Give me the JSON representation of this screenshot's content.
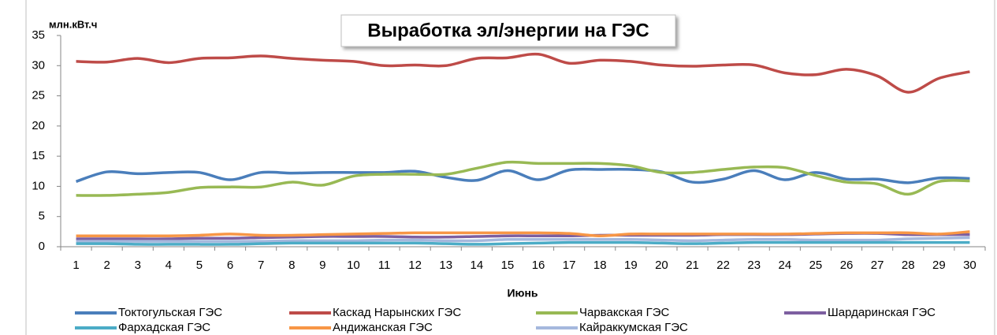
{
  "chart_data": {
    "type": "line",
    "title": "Выработка эл/энергии на ГЭС",
    "y_label": "млн.кВт.ч",
    "x_label": "Июнь",
    "categories": [
      "1",
      "2",
      "3",
      "4",
      "5",
      "6",
      "7",
      "8",
      "9",
      "10",
      "11",
      "12",
      "13",
      "14",
      "15",
      "16",
      "17",
      "18",
      "19",
      "20",
      "21",
      "22",
      "23",
      "24",
      "25",
      "26",
      "27",
      "28",
      "29",
      "30"
    ],
    "ylim": [
      0,
      35
    ],
    "yticks": [
      0,
      5,
      10,
      15,
      20,
      25,
      30,
      35
    ],
    "grid": false,
    "legend": "bottom",
    "series": [
      {
        "name": "Токтогульская ГЭС",
        "color": "#4a7ebb",
        "values": [
          10.8,
          12.4,
          12.1,
          12.3,
          12.3,
          11.1,
          12.3,
          12.2,
          12.3,
          12.3,
          12.3,
          12.5,
          11.5,
          11.0,
          12.6,
          11.1,
          12.7,
          12.8,
          12.8,
          12.4,
          10.7,
          11.2,
          12.6,
          11.1,
          12.3,
          11.2,
          11.2,
          10.6,
          11.4,
          11.3
        ]
      },
      {
        "name": "Каскад Нарынских ГЭС",
        "color": "#be4b48",
        "values": [
          30.7,
          30.6,
          31.2,
          30.5,
          31.2,
          31.3,
          31.6,
          31.2,
          30.9,
          30.7,
          30.0,
          30.1,
          30.0,
          31.2,
          31.3,
          31.9,
          30.4,
          30.9,
          30.7,
          30.1,
          29.9,
          30.1,
          30.1,
          28.8,
          28.5,
          29.4,
          28.3,
          25.6,
          27.9,
          29.0
        ]
      },
      {
        "name": "Чарвакская ГЭС",
        "color": "#98b954",
        "values": [
          8.5,
          8.5,
          8.7,
          9.0,
          9.8,
          9.9,
          9.9,
          10.7,
          10.2,
          11.7,
          12.0,
          12.0,
          12.0,
          13.0,
          14.0,
          13.8,
          13.8,
          13.8,
          13.4,
          12.3,
          12.3,
          12.8,
          13.2,
          13.1,
          11.8,
          10.7,
          10.4,
          8.7,
          10.8,
          10.9
        ]
      },
      {
        "name": "Шардаринская ГЭС",
        "color": "#7d5fa0",
        "values": [
          1.3,
          1.3,
          1.3,
          1.3,
          1.4,
          1.4,
          1.5,
          1.6,
          1.7,
          1.7,
          1.7,
          1.6,
          1.6,
          1.7,
          1.8,
          1.8,
          1.8,
          1.9,
          1.9,
          1.9,
          1.9,
          2.0,
          2.0,
          2.0,
          2.1,
          2.2,
          2.2,
          2.0,
          2.0,
          2.0
        ]
      },
      {
        "name": "Фархадская ГЭС",
        "color": "#4bacc6",
        "values": [
          0.5,
          0.5,
          0.4,
          0.4,
          0.4,
          0.4,
          0.5,
          0.6,
          0.6,
          0.6,
          0.6,
          0.6,
          0.5,
          0.4,
          0.5,
          0.6,
          0.7,
          0.7,
          0.7,
          0.6,
          0.5,
          0.6,
          0.7,
          0.7,
          0.7,
          0.7,
          0.7,
          0.7,
          0.7,
          0.7
        ]
      },
      {
        "name": "Андижанская ГЭС",
        "color": "#f79646",
        "values": [
          1.8,
          1.8,
          1.8,
          1.8,
          1.9,
          2.1,
          1.9,
          1.9,
          2.0,
          2.1,
          2.2,
          2.3,
          2.3,
          2.3,
          2.3,
          2.3,
          2.2,
          1.8,
          2.1,
          2.1,
          2.1,
          2.1,
          2.1,
          2.1,
          2.2,
          2.3,
          2.3,
          2.3,
          2.1,
          2.5
        ]
      },
      {
        "name": "Кайраккумская ГЭС",
        "color": "#a5b8dd",
        "values": [
          0.9,
          0.9,
          0.9,
          0.9,
          0.9,
          0.9,
          0.9,
          1.0,
          1.0,
          1.0,
          1.1,
          1.1,
          1.0,
          1.0,
          1.2,
          1.2,
          1.2,
          1.2,
          1.2,
          1.1,
          1.0,
          1.1,
          1.2,
          1.2,
          1.1,
          1.1,
          1.1,
          1.3,
          1.4,
          1.5
        ]
      }
    ]
  }
}
